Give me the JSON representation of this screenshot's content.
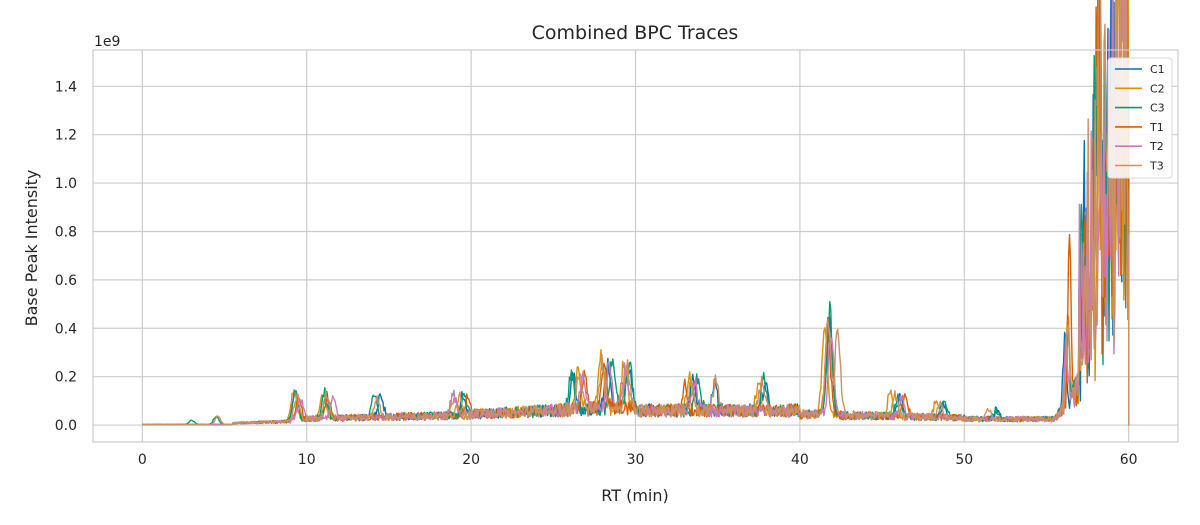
{
  "chart_data": {
    "type": "line",
    "title": "Combined BPC Traces",
    "xlabel": "RT (min)",
    "ylabel": "Base Peak Intensity",
    "y_offset_label": "1e9",
    "xlim": [
      -3,
      63
    ],
    "ylim": [
      -0.07,
      1.55
    ],
    "x_ticks": [
      0,
      10,
      20,
      30,
      40,
      50,
      60
    ],
    "x_tick_labels": [
      "0",
      "10",
      "20",
      "30",
      "40",
      "50",
      "60"
    ],
    "y_ticks": [
      0.0,
      0.2,
      0.4,
      0.6,
      0.8,
      1.0,
      1.2,
      1.4
    ],
    "y_tick_labels": [
      "0.0",
      "0.2",
      "0.4",
      "0.6",
      "0.8",
      "1.0",
      "1.2",
      "1.4"
    ],
    "grid": true,
    "legend_position": "top-right",
    "series": [
      {
        "name": "C1",
        "color": "#0173b2",
        "peaks": [
          [
            9.3,
            0.12
          ],
          [
            11.2,
            0.12
          ],
          [
            14.5,
            0.1
          ],
          [
            19.5,
            0.09
          ],
          [
            26.2,
            0.16
          ],
          [
            28.3,
            0.22
          ],
          [
            29.6,
            0.2
          ],
          [
            33.5,
            0.14
          ],
          [
            34.8,
            0.13
          ],
          [
            37.9,
            0.13
          ],
          [
            41.8,
            0.46
          ],
          [
            46.1,
            0.1
          ],
          [
            48.7,
            0.07
          ],
          [
            52.0,
            0.04
          ],
          [
            56.1,
            0.3
          ],
          [
            57.9,
            0.33
          ],
          [
            58.2,
            1.47
          ],
          [
            59.3,
            0.5
          ],
          [
            59.9,
            0.3
          ]
        ]
      },
      {
        "name": "C2",
        "color": "#de8f05",
        "peaks": [
          [
            9.2,
            0.13
          ],
          [
            11.0,
            0.12
          ],
          [
            19.0,
            0.09
          ],
          [
            26.5,
            0.17
          ],
          [
            27.9,
            0.25
          ],
          [
            29.3,
            0.21
          ],
          [
            33.3,
            0.15
          ],
          [
            37.5,
            0.13
          ],
          [
            41.5,
            0.39
          ],
          [
            45.5,
            0.11
          ],
          [
            48.3,
            0.08
          ],
          [
            56.3,
            0.44
          ],
          [
            58.2,
            0.5
          ],
          [
            59.2,
            0.6
          ],
          [
            59.9,
            0.45
          ]
        ]
      },
      {
        "name": "C3",
        "color": "#029e73",
        "peaks": [
          [
            3.0,
            0.02
          ],
          [
            4.5,
            0.04
          ],
          [
            9.3,
            0.13
          ],
          [
            11.1,
            0.13
          ],
          [
            14.1,
            0.1
          ],
          [
            19.6,
            0.09
          ],
          [
            26.1,
            0.17
          ],
          [
            28.6,
            0.22
          ],
          [
            29.6,
            0.21
          ],
          [
            33.8,
            0.16
          ],
          [
            37.8,
            0.14
          ],
          [
            41.8,
            0.48
          ],
          [
            46.0,
            0.1
          ],
          [
            48.8,
            0.08
          ],
          [
            51.9,
            0.04
          ],
          [
            56.3,
            0.37
          ],
          [
            57.9,
            0.5
          ],
          [
            58.2,
            1.48
          ],
          [
            59.0,
            0.55
          ],
          [
            59.7,
            0.4
          ]
        ]
      },
      {
        "name": "T1",
        "color": "#d55e00",
        "peaks": [
          [
            9.5,
            0.1
          ],
          [
            11.3,
            0.1
          ],
          [
            19.8,
            0.08
          ],
          [
            26.9,
            0.16
          ],
          [
            28.1,
            0.2
          ],
          [
            33.0,
            0.12
          ],
          [
            41.7,
            0.39
          ],
          [
            46.4,
            0.09
          ],
          [
            56.4,
            0.77
          ],
          [
            57.2,
            0.2
          ],
          [
            58.1,
            1.45
          ],
          [
            59.6,
            0.35
          ],
          [
            59.9,
            0.2
          ]
        ]
      },
      {
        "name": "T2",
        "color": "#cc78bc",
        "peaks": [
          [
            9.6,
            0.1
          ],
          [
            11.6,
            0.09
          ],
          [
            18.9,
            0.1
          ],
          [
            26.8,
            0.16
          ],
          [
            28.4,
            0.22
          ],
          [
            29.4,
            0.19
          ],
          [
            33.6,
            0.12
          ],
          [
            41.9,
            0.4
          ],
          [
            46.2,
            0.09
          ],
          [
            56.2,
            0.3
          ],
          [
            58.3,
            0.55
          ],
          [
            59.3,
            0.5
          ],
          [
            59.8,
            0.4
          ]
        ]
      },
      {
        "name": "T3",
        "color": "#ca9161",
        "peaks": [
          [
            4.6,
            0.04
          ],
          [
            9.4,
            0.11
          ],
          [
            11.2,
            0.11
          ],
          [
            14.3,
            0.1
          ],
          [
            19.3,
            0.09
          ],
          [
            26.6,
            0.17
          ],
          [
            28.0,
            0.22
          ],
          [
            29.5,
            0.2
          ],
          [
            33.4,
            0.14
          ],
          [
            34.9,
            0.13
          ],
          [
            37.7,
            0.13
          ],
          [
            41.7,
            0.43
          ],
          [
            42.3,
            0.42
          ],
          [
            45.8,
            0.1
          ],
          [
            48.5,
            0.07
          ],
          [
            51.5,
            0.04
          ],
          [
            56.3,
            0.42
          ],
          [
            57.5,
            0.35
          ],
          [
            58.2,
            1.47
          ],
          [
            58.8,
            0.57
          ],
          [
            59.3,
            0.66
          ],
          [
            59.8,
            0.58
          ]
        ]
      }
    ]
  }
}
